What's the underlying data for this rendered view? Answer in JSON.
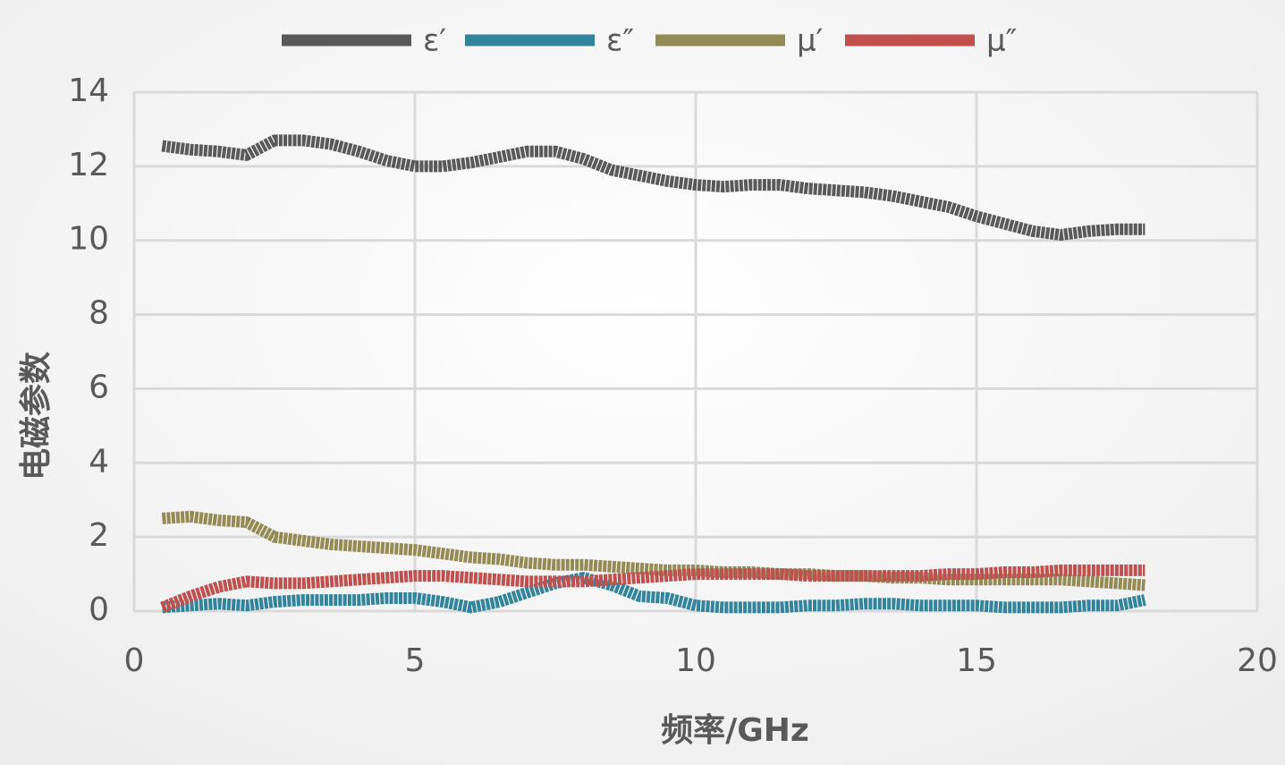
{
  "chart_data": {
    "type": "line",
    "xlabel": "频率/GHz",
    "ylabel": "电磁参数",
    "x": [
      0.5,
      1,
      1.5,
      2,
      2.5,
      3,
      3.5,
      4,
      4.5,
      5,
      5.5,
      6,
      6.5,
      7,
      7.5,
      8,
      8.5,
      9,
      9.5,
      10,
      10.5,
      11,
      11.5,
      12,
      12.5,
      13,
      13.5,
      14,
      14.5,
      15,
      15.5,
      16,
      16.5,
      17,
      17.5,
      18
    ],
    "series": [
      {
        "name": "ε′",
        "color": "#595959",
        "values": [
          12.55,
          12.45,
          12.4,
          12.3,
          12.7,
          12.7,
          12.6,
          12.4,
          12.15,
          12.0,
          12.0,
          12.1,
          12.25,
          12.4,
          12.4,
          12.2,
          11.9,
          11.75,
          11.6,
          11.5,
          11.45,
          11.5,
          11.5,
          11.4,
          11.35,
          11.3,
          11.2,
          11.05,
          10.9,
          10.65,
          10.45,
          10.25,
          10.15,
          10.25,
          10.3,
          10.3
        ]
      },
      {
        "name": "ε″",
        "color": "#31849b",
        "values": [
          0.1,
          0.15,
          0.2,
          0.15,
          0.25,
          0.3,
          0.3,
          0.3,
          0.35,
          0.35,
          0.25,
          0.1,
          0.25,
          0.5,
          0.75,
          0.9,
          0.7,
          0.4,
          0.35,
          0.15,
          0.1,
          0.1,
          0.1,
          0.15,
          0.15,
          0.2,
          0.2,
          0.15,
          0.15,
          0.15,
          0.1,
          0.1,
          0.1,
          0.15,
          0.15,
          0.3
        ]
      },
      {
        "name": "μ′",
        "color": "#948a54",
        "values": [
          2.5,
          2.55,
          2.45,
          2.4,
          2.0,
          1.9,
          1.8,
          1.75,
          1.7,
          1.65,
          1.55,
          1.45,
          1.4,
          1.3,
          1.25,
          1.25,
          1.2,
          1.15,
          1.1,
          1.1,
          1.05,
          1.05,
          1.0,
          1.0,
          0.95,
          0.95,
          0.9,
          0.9,
          0.85,
          0.85,
          0.85,
          0.85,
          0.85,
          0.8,
          0.75,
          0.7
        ]
      },
      {
        "name": "μ″",
        "color": "#c0504d",
        "values": [
          0.1,
          0.4,
          0.65,
          0.8,
          0.75,
          0.75,
          0.8,
          0.85,
          0.9,
          0.95,
          0.95,
          0.9,
          0.85,
          0.8,
          0.8,
          0.8,
          0.85,
          0.9,
          0.95,
          1.0,
          1.0,
          1.0,
          1.0,
          0.95,
          0.95,
          0.95,
          0.95,
          0.95,
          1.0,
          1.0,
          1.05,
          1.05,
          1.1,
          1.1,
          1.1,
          1.1
        ]
      }
    ],
    "xlim": [
      0,
      20
    ],
    "xticks": [
      0,
      5,
      10,
      15,
      20
    ],
    "ylim": [
      0,
      14
    ],
    "yticks": [
      0,
      2,
      4,
      6,
      8,
      10,
      12,
      14
    ],
    "grid": true,
    "legend": "top"
  }
}
